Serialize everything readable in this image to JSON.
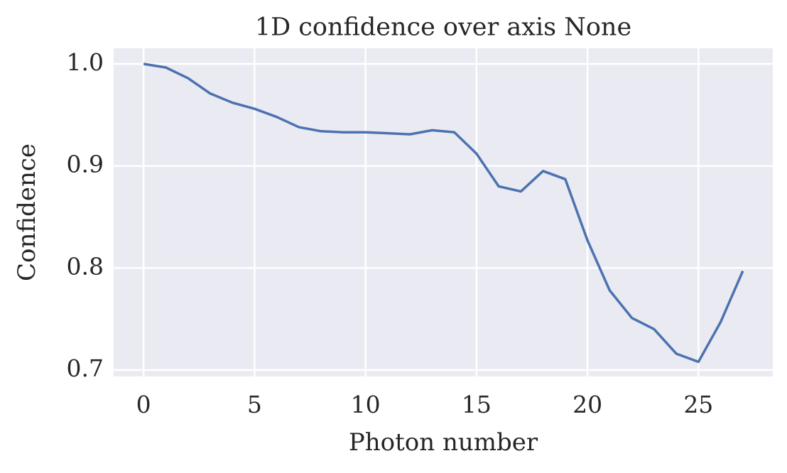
{
  "chart_data": {
    "type": "line",
    "title": "1D confidence over axis None",
    "xlabel": "Photon number",
    "ylabel": "Confidence",
    "x": [
      0,
      1,
      2,
      3,
      4,
      5,
      6,
      7,
      8,
      9,
      10,
      11,
      12,
      13,
      14,
      15,
      16,
      17,
      18,
      19,
      20,
      21,
      22,
      23,
      24,
      25,
      26,
      27
    ],
    "series": [
      {
        "name": "Confidence",
        "color": "#4c72b0",
        "values": [
          1.0,
          0.9965,
          0.986,
          0.971,
          0.962,
          0.956,
          0.948,
          0.938,
          0.934,
          0.933,
          0.933,
          0.932,
          0.931,
          0.935,
          0.933,
          0.912,
          0.88,
          0.875,
          0.895,
          0.887,
          0.827,
          0.778,
          0.751,
          0.74,
          0.716,
          0.708,
          0.747,
          0.797
        ]
      }
    ],
    "xlim": [
      -1.35,
      28.35
    ],
    "ylim": [
      0.6937,
      1.0153
    ],
    "xticks": [
      0,
      5,
      10,
      15,
      20,
      25
    ],
    "yticks": [
      0.7,
      0.8,
      0.9,
      {
        "value": 1,
        "label": "1.0"
      }
    ],
    "grid": true
  }
}
